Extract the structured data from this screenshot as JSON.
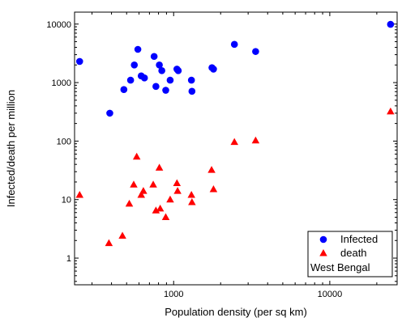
{
  "chart_data": {
    "type": "scatter",
    "title": "",
    "xlabel": "Population density (per sq km)",
    "ylabel": "Infected/death per million",
    "xscale": "log",
    "yscale": "log",
    "xlim": [
      232,
      27000
    ],
    "ylim": [
      0.35,
      16000
    ],
    "x_ticks": [
      {
        "value": 1000,
        "label": "1000"
      },
      {
        "value": 10000,
        "label": "10000"
      }
    ],
    "y_ticks": [
      {
        "value": 1,
        "label": "1"
      },
      {
        "value": 10,
        "label": "10"
      },
      {
        "value": 100,
        "label": "100"
      },
      {
        "value": 1000,
        "label": "1000"
      },
      {
        "value": 10000,
        "label": "10000"
      }
    ],
    "grid": false,
    "legend_position": "bottom-right",
    "series": [
      {
        "name": "Infected",
        "marker": "circle",
        "color": "#0000ff",
        "points": [
          {
            "x": 250,
            "y": 2300
          },
          {
            "x": 390,
            "y": 300
          },
          {
            "x": 480,
            "y": 760
          },
          {
            "x": 530,
            "y": 1100
          },
          {
            "x": 560,
            "y": 2000
          },
          {
            "x": 590,
            "y": 3700
          },
          {
            "x": 620,
            "y": 1300
          },
          {
            "x": 650,
            "y": 1200
          },
          {
            "x": 750,
            "y": 2800
          },
          {
            "x": 770,
            "y": 860
          },
          {
            "x": 810,
            "y": 2000
          },
          {
            "x": 840,
            "y": 1600
          },
          {
            "x": 890,
            "y": 740
          },
          {
            "x": 950,
            "y": 1100
          },
          {
            "x": 1050,
            "y": 1700
          },
          {
            "x": 1070,
            "y": 1600
          },
          {
            "x": 1300,
            "y": 1100
          },
          {
            "x": 1310,
            "y": 710
          },
          {
            "x": 1760,
            "y": 1800
          },
          {
            "x": 1800,
            "y": 1700
          },
          {
            "x": 2450,
            "y": 4500
          },
          {
            "x": 3350,
            "y": 3400
          },
          {
            "x": 24500,
            "y": 9900
          }
        ]
      },
      {
        "name": "death",
        "marker": "triangle",
        "color": "#ff0000",
        "points": [
          {
            "x": 250,
            "y": 12
          },
          {
            "x": 385,
            "y": 1.8
          },
          {
            "x": 470,
            "y": 2.4
          },
          {
            "x": 520,
            "y": 8.5
          },
          {
            "x": 555,
            "y": 18
          },
          {
            "x": 580,
            "y": 54
          },
          {
            "x": 620,
            "y": 12
          },
          {
            "x": 640,
            "y": 14
          },
          {
            "x": 740,
            "y": 18
          },
          {
            "x": 770,
            "y": 6.5
          },
          {
            "x": 810,
            "y": 35
          },
          {
            "x": 820,
            "y": 7
          },
          {
            "x": 890,
            "y": 5
          },
          {
            "x": 950,
            "y": 10
          },
          {
            "x": 1050,
            "y": 19
          },
          {
            "x": 1060,
            "y": 14
          },
          {
            "x": 1300,
            "y": 12
          },
          {
            "x": 1310,
            "y": 9
          },
          {
            "x": 1750,
            "y": 32
          },
          {
            "x": 1800,
            "y": 15
          },
          {
            "x": 2450,
            "y": 96
          },
          {
            "x": 3350,
            "y": 102
          },
          {
            "x": 24500,
            "y": 320
          }
        ]
      }
    ],
    "legend_entries": [
      "Infected",
      "death"
    ],
    "legend_note": "West Bengal"
  }
}
